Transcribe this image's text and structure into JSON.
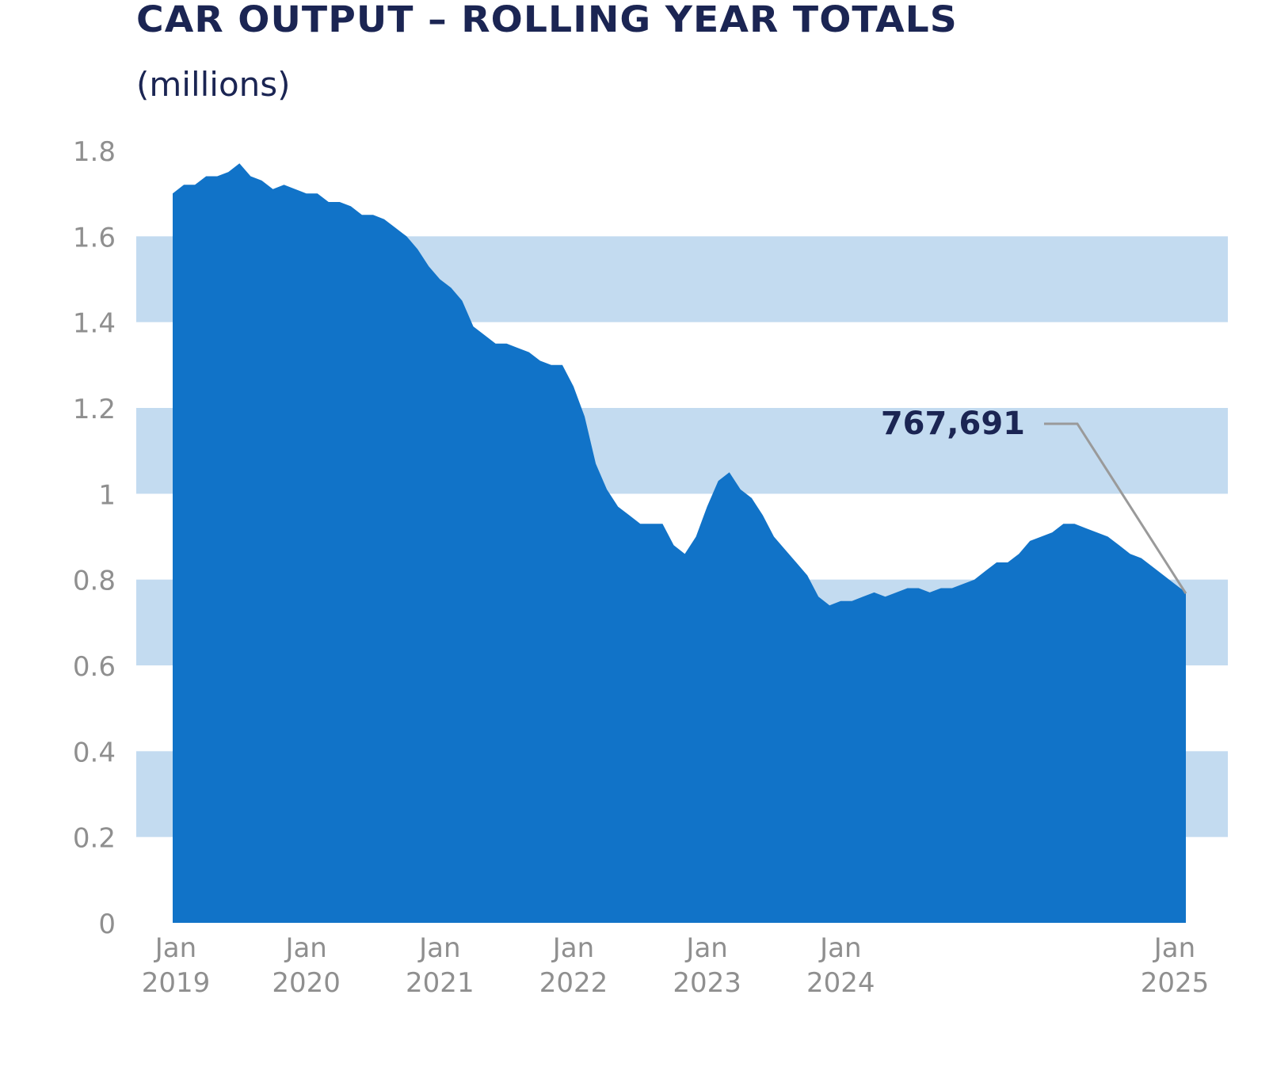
{
  "chart_data": {
    "type": "area",
    "title": "CAR OUTPUT – ROLLING YEAR TOTALS",
    "subtitle": "(millions)",
    "ylim": [
      0,
      1.8
    ],
    "yticks": [
      "0",
      "0.2",
      "0.4",
      "0.6",
      "0.8",
      "1",
      "1.2",
      "1.4",
      "1.6",
      "1.8"
    ],
    "xticks": [
      {
        "month": 0,
        "line1": "Jan",
        "line2": "2019"
      },
      {
        "month": 12,
        "line1": "Jan",
        "line2": "2020"
      },
      {
        "month": 24,
        "line1": "Jan",
        "line2": "2021"
      },
      {
        "month": 36,
        "line1": "Jan",
        "line2": "2022"
      },
      {
        "month": 48,
        "line1": "Jan",
        "line2": "2023"
      },
      {
        "month": 60,
        "line1": "Jan",
        "line2": "2024"
      },
      {
        "month": 72,
        "line1": "Jan",
        "line2": "2025"
      }
    ],
    "grid": "alternating horizontal bands",
    "colors": {
      "fill": "#1173c8",
      "band": "#c3dbf0",
      "title": "#1b2553",
      "axis_text": "#8f8f8f",
      "leader": "#9a9a9a"
    },
    "series": [
      {
        "values": [
          1.7,
          1.72,
          1.72,
          1.74,
          1.74,
          1.75,
          1.77,
          1.74,
          1.73,
          1.71,
          1.72,
          1.71,
          1.7,
          1.7,
          1.68,
          1.68,
          1.67,
          1.65,
          1.65,
          1.64,
          1.62,
          1.6,
          1.57,
          1.53,
          1.5,
          1.48,
          1.45,
          1.39,
          1.37,
          1.35,
          1.35,
          1.34,
          1.33,
          1.31,
          1.3,
          1.3,
          1.25,
          1.18,
          1.07,
          1.01,
          0.97,
          0.95,
          0.93,
          0.93,
          0.93,
          0.88,
          0.86,
          0.9,
          0.97,
          1.03,
          1.05,
          1.01,
          0.99,
          0.95,
          0.9,
          0.87,
          0.84,
          0.81,
          0.76,
          0.74,
          0.75,
          0.75,
          0.76,
          0.77,
          0.76,
          0.77,
          0.78,
          0.78,
          0.77,
          0.78,
          0.78,
          0.79,
          0.8,
          0.82,
          0.84,
          0.84,
          0.86,
          0.89,
          0.9,
          0.91,
          0.93,
          0.93,
          0.92,
          0.91,
          0.9,
          0.88,
          0.86,
          0.85,
          0.83,
          0.81,
          0.79,
          0.77
        ]
      }
    ],
    "annotation": {
      "label": "767,691",
      "value": 0.767691
    }
  }
}
